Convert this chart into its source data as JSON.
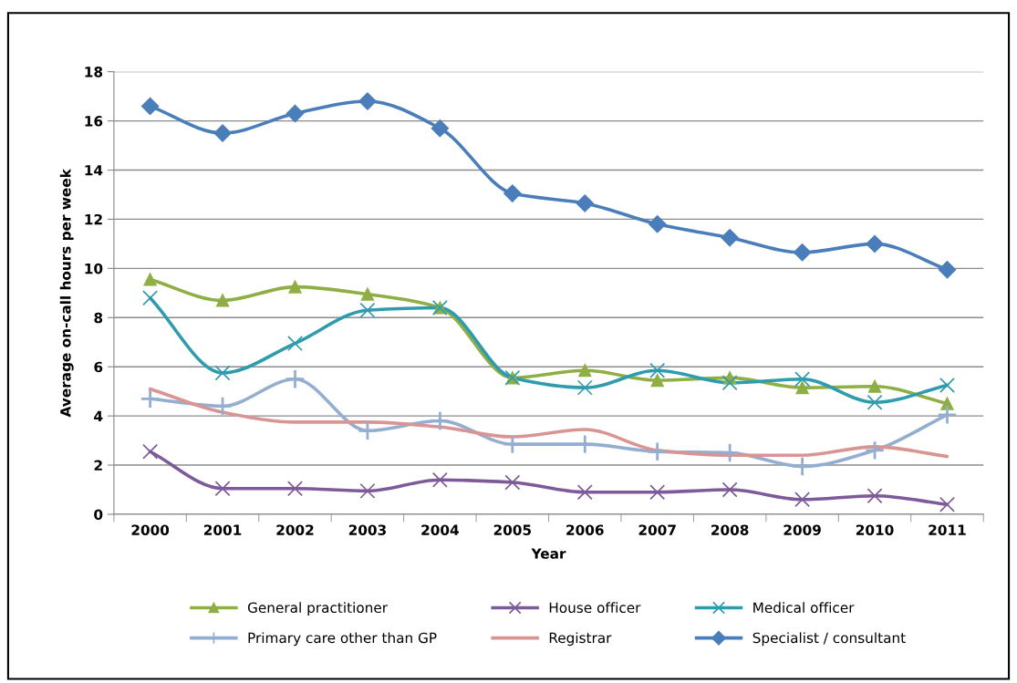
{
  "chart_data": {
    "type": "line",
    "xlabel": "Year",
    "ylabel": "Average on-call hours per week",
    "categories": [
      "2000",
      "2001",
      "2002",
      "2003",
      "2004",
      "2005",
      "2006",
      "2007",
      "2008",
      "2009",
      "2010",
      "2011"
    ],
    "ylim": [
      0,
      18
    ],
    "yticks": [
      0,
      2,
      4,
      6,
      8,
      10,
      12,
      14,
      16,
      18
    ],
    "grid": "y",
    "legend": "bottom",
    "line_style": "solid",
    "series": [
      {
        "name": "General practitioner",
        "color": "#8fae44",
        "marker": "triangle",
        "values": [
          9.55,
          8.7,
          9.25,
          8.95,
          8.4,
          5.55,
          5.85,
          5.45,
          5.55,
          5.15,
          5.2,
          4.5
        ]
      },
      {
        "name": "House officer",
        "color": "#7d5a99",
        "marker": "cross",
        "values": [
          2.55,
          1.05,
          1.05,
          0.95,
          1.4,
          1.3,
          0.9,
          0.9,
          1.0,
          0.6,
          0.75,
          0.4
        ]
      },
      {
        "name": "Medical officer",
        "color": "#2f9bae",
        "marker": "cross",
        "values": [
          8.8,
          5.75,
          6.95,
          8.3,
          8.4,
          5.55,
          5.15,
          5.85,
          5.35,
          5.5,
          4.55,
          5.25
        ]
      },
      {
        "name": "Primary care other than GP",
        "color": "#93aed0",
        "marker": "plus",
        "values": [
          4.7,
          4.4,
          5.5,
          3.4,
          3.8,
          2.85,
          2.85,
          2.55,
          2.5,
          1.95,
          2.6,
          4.05
        ]
      },
      {
        "name": "Registrar",
        "color": "#d99593",
        "marker": "none",
        "values": [
          5.1,
          4.15,
          3.75,
          3.75,
          3.55,
          3.15,
          3.45,
          2.6,
          2.4,
          2.4,
          2.75,
          2.35
        ]
      },
      {
        "name": "Specialist / consultant",
        "color": "#4a7ebb",
        "marker": "diamond",
        "values": [
          16.6,
          15.5,
          16.3,
          16.8,
          15.7,
          13.05,
          12.65,
          11.8,
          11.25,
          10.65,
          11.0,
          9.95
        ]
      }
    ]
  }
}
